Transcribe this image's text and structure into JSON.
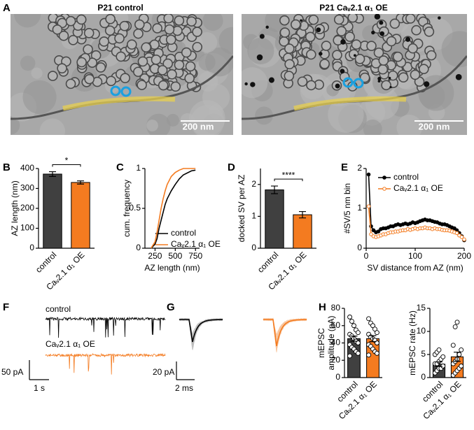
{
  "figure": {
    "images": {
      "panel": "A",
      "titles": [
        "P21 control",
        "P21 Caᵥ2.1 α₁ OE"
      ],
      "scale_bars": [
        "200 nm",
        "200 nm"
      ]
    },
    "traces": {
      "panel": "F",
      "labels": [
        "control",
        "Caᵥ2.1 α₁ OE"
      ],
      "scale_bar": [
        "50 pA",
        "1 s"
      ]
    },
    "averages": {
      "panel": "G",
      "scale_bar": [
        "20 pA",
        "2 ms"
      ]
    }
  },
  "chart_data": [
    {
      "type": "bar",
      "panel": "B",
      "ylabel": "AZ length (nm)",
      "categories": [
        "control",
        "Caᵥ2.1 α₁ OE"
      ],
      "values": [
        372,
        330
      ],
      "errors": [
        12,
        8
      ],
      "colors": [
        "#404040",
        "#f47b20"
      ],
      "ylim": [
        0,
        400
      ],
      "yticks": [
        0,
        100,
        200,
        300,
        400
      ],
      "significance": "*"
    },
    {
      "type": "line",
      "panel": "C",
      "xlabel": "AZ length (nm)",
      "ylabel": "cum. frequency",
      "x": [
        200,
        250,
        275,
        300,
        325,
        350,
        375,
        400,
        450,
        500,
        550,
        600,
        700,
        750
      ],
      "series": [
        {
          "name": "control",
          "color": "#000000",
          "values": [
            0,
            0.05,
            0.12,
            0.25,
            0.35,
            0.45,
            0.55,
            0.62,
            0.72,
            0.8,
            0.87,
            0.92,
            0.97,
            0.98
          ]
        },
        {
          "name": "Caᵥ2.1 α₁ OE",
          "color": "#f47b20",
          "values": [
            0,
            0.08,
            0.2,
            0.35,
            0.5,
            0.62,
            0.72,
            0.8,
            0.9,
            0.95,
            0.98,
            1,
            1,
            1
          ]
        }
      ],
      "xlim": [
        125,
        800
      ],
      "xticks": [
        250,
        500,
        750
      ],
      "ylim": [
        0,
        1
      ],
      "yticks": [
        0,
        0.5,
        1
      ],
      "legend": "lower right"
    },
    {
      "type": "bar",
      "panel": "D",
      "ylabel": "docked SV per AZ",
      "categories": [
        "control",
        "Caᵥ2.1 α₁ OE"
      ],
      "values": [
        1.83,
        1.05
      ],
      "errors": [
        0.12,
        0.1
      ],
      "colors": [
        "#404040",
        "#f47b20"
      ],
      "ylim": [
        0,
        2.5
      ],
      "yticks": [
        0,
        1,
        2
      ],
      "significance": "****"
    },
    {
      "type": "line",
      "panel": "E",
      "markers": true,
      "xlabel": "SV distance from AZ (nm)",
      "ylabel": "#SV/5 nm bin",
      "x": [
        5,
        10,
        15,
        20,
        25,
        30,
        35,
        40,
        45,
        50,
        55,
        60,
        65,
        70,
        75,
        80,
        85,
        90,
        95,
        100,
        105,
        110,
        115,
        120,
        125,
        130,
        135,
        140,
        145,
        150,
        155,
        160,
        165,
        170,
        175,
        180,
        185,
        190,
        195,
        200
      ],
      "series": [
        {
          "name": "control",
          "color": "#000000",
          "values": [
            1.85,
            0.55,
            0.45,
            0.4,
            0.42,
            0.48,
            0.5,
            0.5,
            0.52,
            0.55,
            0.55,
            0.58,
            0.6,
            0.58,
            0.6,
            0.62,
            0.6,
            0.62,
            0.65,
            0.63,
            0.65,
            0.68,
            0.7,
            0.72,
            0.7,
            0.7,
            0.68,
            0.66,
            0.65,
            0.62,
            0.6,
            0.6,
            0.58,
            0.55,
            0.52,
            0.5,
            0.45,
            0.38,
            0.3,
            0.2
          ]
        },
        {
          "name": "Caᵥ2.1 α₁ OE",
          "color": "#f47b20",
          "values": [
            1.05,
            0.35,
            0.3,
            0.28,
            0.3,
            0.32,
            0.35,
            0.35,
            0.38,
            0.4,
            0.4,
            0.42,
            0.42,
            0.44,
            0.45,
            0.45,
            0.48,
            0.46,
            0.48,
            0.5,
            0.48,
            0.5,
            0.5,
            0.52,
            0.5,
            0.5,
            0.48,
            0.5,
            0.48,
            0.48,
            0.46,
            0.45,
            0.45,
            0.44,
            0.42,
            0.4,
            0.38,
            0.32,
            0.28,
            0.22
          ]
        }
      ],
      "xlim": [
        0,
        200
      ],
      "xticks": [
        0,
        100,
        200
      ],
      "ylim": [
        0,
        2
      ],
      "yticks": [
        0,
        1,
        2
      ],
      "legend": "upper right"
    },
    {
      "type": "bar",
      "panel": "H",
      "ylabel": [
        "mEPSC",
        "amplitude (pA)"
      ],
      "categories": [
        "control",
        "Caᵥ2.1 α₁ OE"
      ],
      "values": [
        45,
        45
      ],
      "errors": [
        3,
        3.5
      ],
      "colors": [
        "#404040",
        "#f47b20"
      ],
      "points": [
        [
          70,
          65,
          60,
          55,
          52,
          50,
          48,
          45,
          42,
          40,
          38,
          35,
          33,
          30,
          28,
          25
        ],
        [
          68,
          63,
          60,
          56,
          52,
          50,
          47,
          45,
          43,
          40,
          38,
          36,
          33,
          30,
          28,
          26
        ]
      ],
      "ylim": [
        0,
        80
      ],
      "yticks": [
        0,
        20,
        40,
        60,
        80
      ]
    },
    {
      "type": "bar",
      "ylabel": "mEPSC rate (Hz)",
      "categories": [
        "control",
        "Caᵥ2.1 α₁ OE"
      ],
      "values": [
        2.9,
        4.5
      ],
      "errors": [
        0.5,
        1
      ],
      "colors": [
        "#404040",
        "#f47b20"
      ],
      "points": [
        [
          1,
          1.5,
          2,
          2,
          2.5,
          3,
          3,
          3.5,
          4,
          4.5,
          5,
          5.5,
          6
        ],
        [
          0.5,
          1,
          1.5,
          2,
          2.5,
          3,
          3.5,
          4,
          5,
          6,
          7,
          11,
          12
        ]
      ],
      "ylim": [
        0,
        15
      ],
      "yticks": [
        0,
        5,
        10,
        15
      ]
    }
  ]
}
